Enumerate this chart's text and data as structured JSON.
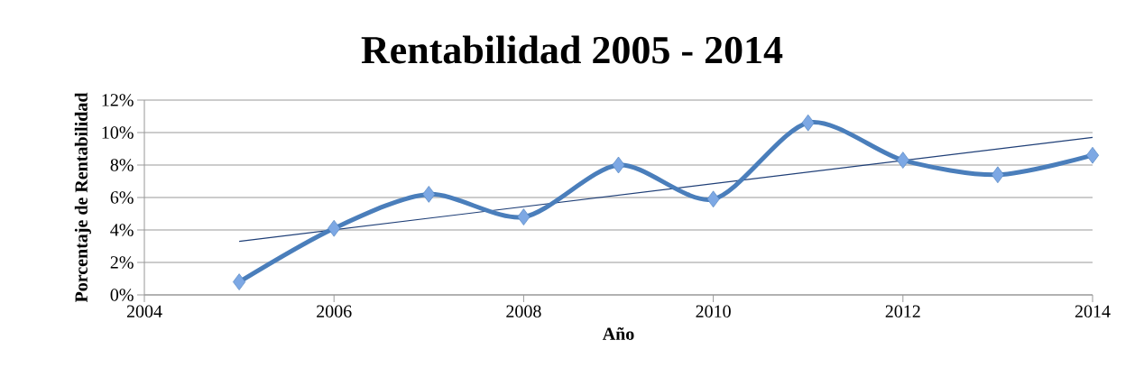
{
  "chart_data": {
    "type": "line",
    "title": "Rentabilidad 2005 - 2014",
    "xlabel": "Año",
    "ylabel": "Porcentaje de Rentabilidad",
    "x": [
      2005,
      2006,
      2007,
      2008,
      2009,
      2010,
      2011,
      2012,
      2013,
      2014
    ],
    "series": [
      {
        "color": "#4a7ebb",
        "marker": "diamond",
        "values": [
          0.8,
          4.1,
          6.2,
          4.8,
          8.0,
          5.9,
          10.6,
          8.3,
          7.4,
          8.6
        ]
      },
      {
        "type": "line",
        "color": "#1f3f77",
        "marker": "none",
        "x": [
          2005,
          2014
        ],
        "values": [
          3.3,
          9.7
        ]
      }
    ],
    "xlim": [
      2004,
      2014
    ],
    "xticks": [
      2004,
      2006,
      2008,
      2010,
      2012,
      2014
    ],
    "ylim": [
      0,
      12
    ],
    "yticks": [
      {
        "value": 0,
        "label": "0%"
      },
      {
        "value": 2,
        "label": "2%"
      },
      {
        "value": 4,
        "label": "4%"
      },
      {
        "value": 6,
        "label": "6%"
      },
      {
        "value": 8,
        "label": "8%"
      },
      {
        "value": 10,
        "label": "10%"
      },
      {
        "value": 12,
        "label": "12%"
      }
    ],
    "grid": "y"
  }
}
